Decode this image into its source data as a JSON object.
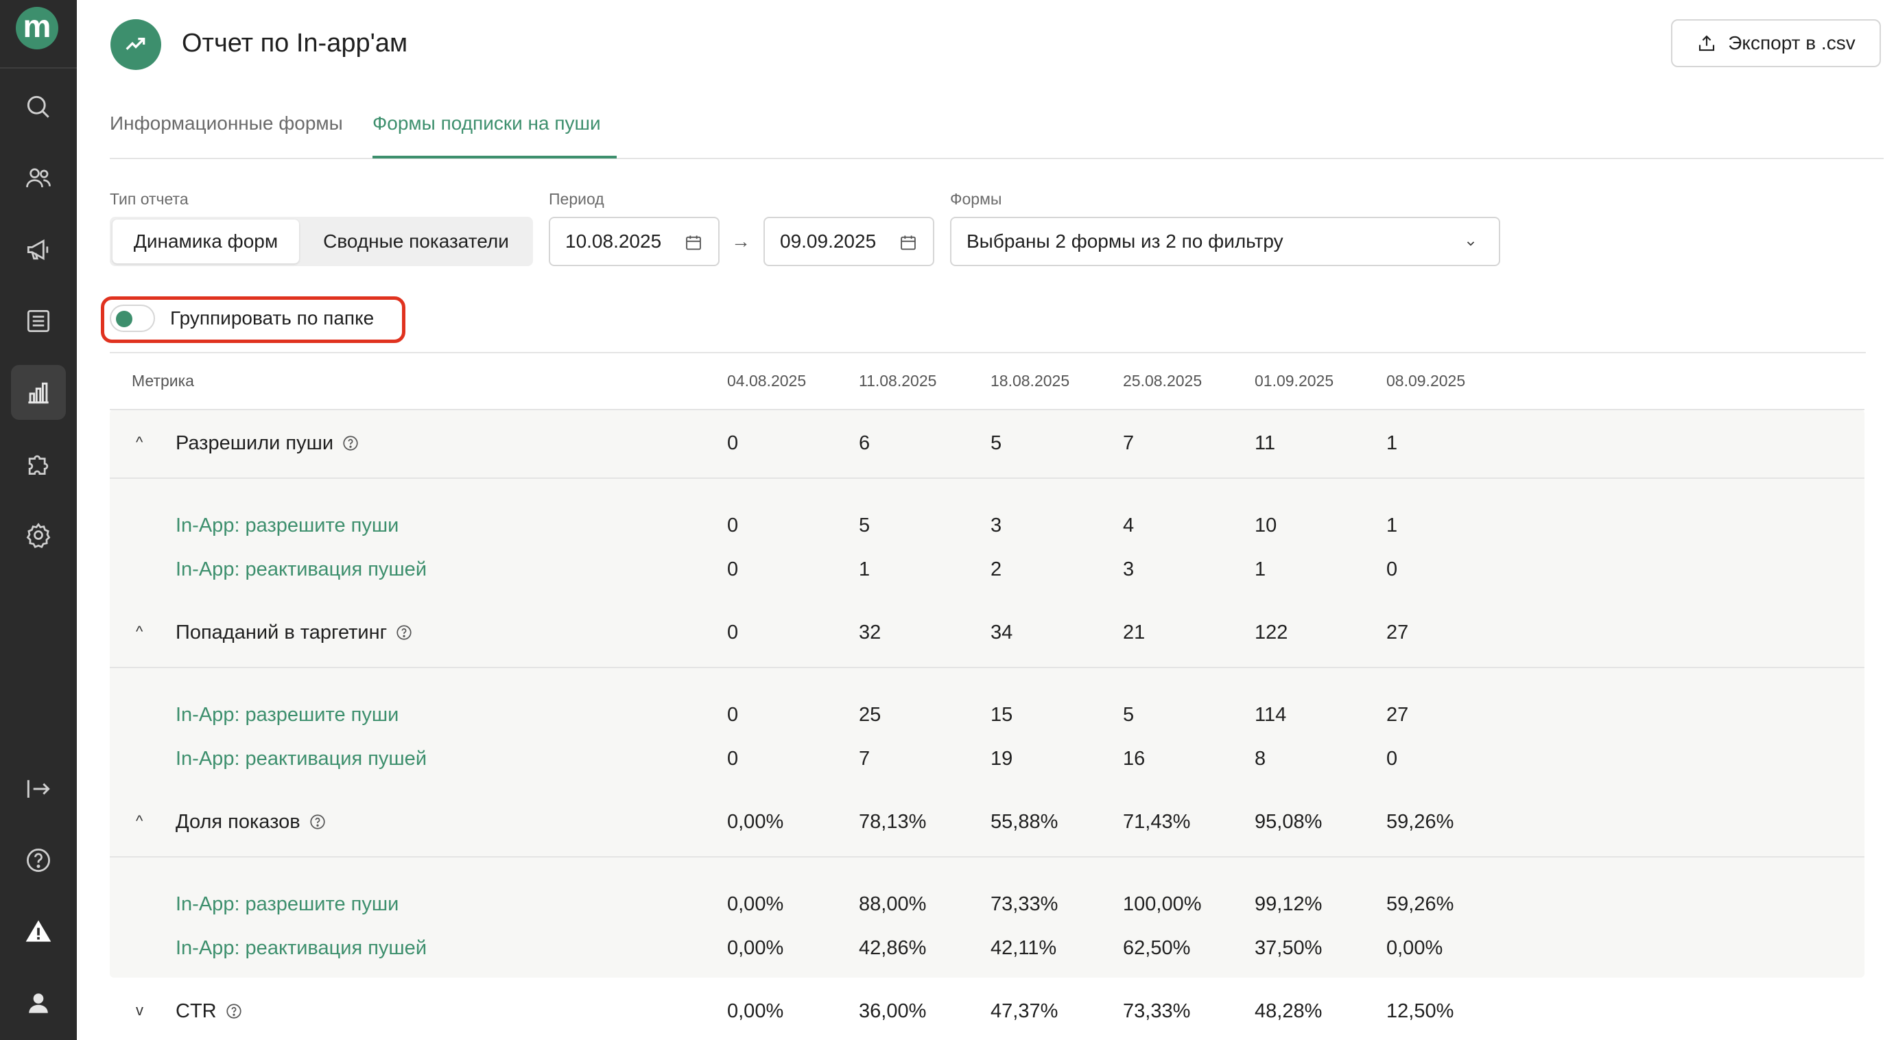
{
  "app": {
    "logo_letter": "m",
    "sidebar_icons": [
      "search-icon",
      "users-icon",
      "megaphone-icon",
      "list-icon",
      "chart-icon",
      "puzzle-icon",
      "gear-icon",
      "logout-icon",
      "help-icon",
      "warning-icon",
      "user-icon"
    ],
    "accent_color": "#3d8f6d"
  },
  "header": {
    "title": "Отчет по In-app'ам",
    "export_label": "Экспорт в .csv"
  },
  "tabs": [
    {
      "label": "Информационные формы",
      "active": false
    },
    {
      "label": "Формы подписки на пуши",
      "active": true
    }
  ],
  "filters": {
    "report_type_label": "Тип отчета",
    "report_types": [
      "Динамика форм",
      "Сводные показатели"
    ],
    "report_type_selected": "Динамика форм",
    "period_label": "Период",
    "date_from": "10.08.2025",
    "date_to": "09.09.2025",
    "forms_label": "Формы",
    "forms_value": "Выбраны 2 формы из 2 по фильтру"
  },
  "group_toggle": {
    "label": "Группировать по папке",
    "checked": false
  },
  "table": {
    "metric_header": "Метрика",
    "dates": [
      "04.08.2025",
      "11.08.2025",
      "18.08.2025",
      "25.08.2025",
      "01.09.2025",
      "08.09.2025"
    ],
    "groups": [
      {
        "name": "Разрешили пуши",
        "expanded": true,
        "values": [
          "0",
          "6",
          "5",
          "7",
          "11",
          "1"
        ],
        "rows": [
          {
            "name": "In-App: разрешите пуши",
            "values": [
              "0",
              "5",
              "3",
              "4",
              "10",
              "1"
            ]
          },
          {
            "name": "In-App: реактивация пушей",
            "values": [
              "0",
              "1",
              "2",
              "3",
              "1",
              "0"
            ]
          }
        ]
      },
      {
        "name": "Попаданий в таргетинг",
        "expanded": true,
        "values": [
          "0",
          "32",
          "34",
          "21",
          "122",
          "27"
        ],
        "rows": [
          {
            "name": "In-App: разрешите пуши",
            "values": [
              "0",
              "25",
              "15",
              "5",
              "114",
              "27"
            ]
          },
          {
            "name": "In-App: реактивация пушей",
            "values": [
              "0",
              "7",
              "19",
              "16",
              "8",
              "0"
            ]
          }
        ]
      },
      {
        "name": "Доля показов",
        "expanded": true,
        "values": [
          "0,00%",
          "78,13%",
          "55,88%",
          "71,43%",
          "95,08%",
          "59,26%"
        ],
        "rows": [
          {
            "name": "In-App: разрешите пуши",
            "values": [
              "0,00%",
              "88,00%",
              "73,33%",
              "100,00%",
              "99,12%",
              "59,26%"
            ]
          },
          {
            "name": "In-App: реактивация пушей",
            "values": [
              "0,00%",
              "42,86%",
              "42,11%",
              "62,50%",
              "37,50%",
              "0,00%"
            ]
          }
        ]
      },
      {
        "name": "CTR",
        "expanded": false,
        "values": [
          "0,00%",
          "36,00%",
          "47,37%",
          "73,33%",
          "48,28%",
          "12,50%"
        ],
        "rows": []
      }
    ]
  }
}
